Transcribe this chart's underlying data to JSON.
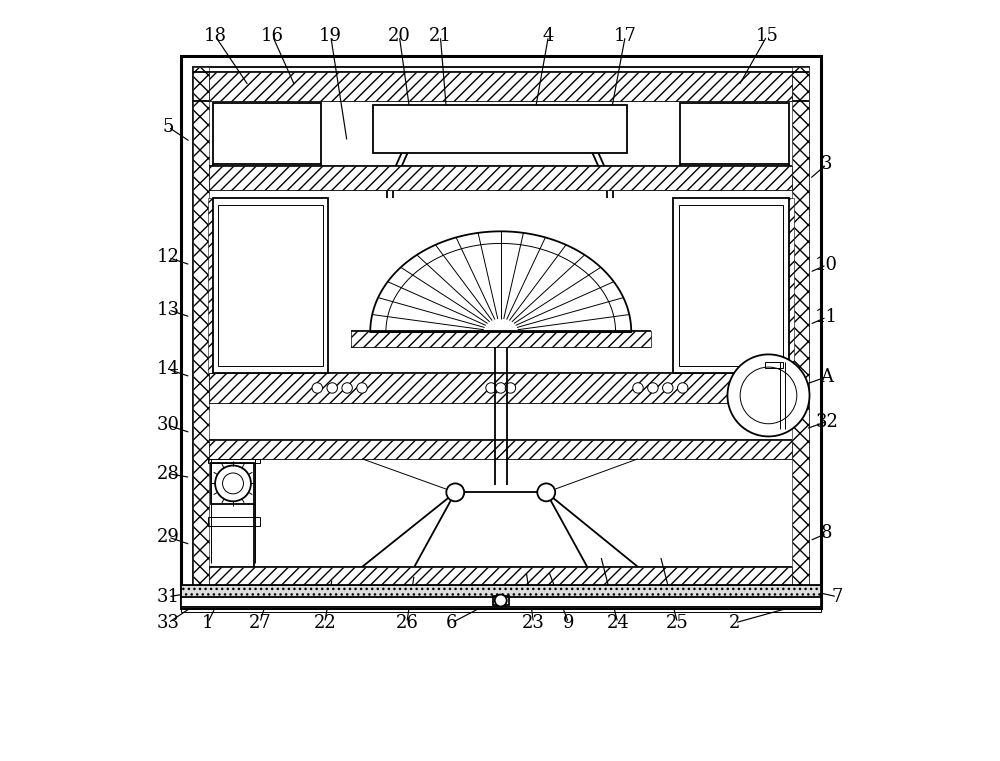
{
  "bg_color": "#ffffff",
  "line_color": "#000000",
  "label_color": "#000000",
  "figsize": [
    10.0,
    7.61
  ],
  "dpi": 100,
  "label_configs": {
    "18": [
      0.118,
      0.962,
      0.163,
      0.895
    ],
    "16": [
      0.195,
      0.962,
      0.225,
      0.895
    ],
    "19": [
      0.273,
      0.962,
      0.295,
      0.82
    ],
    "20": [
      0.365,
      0.962,
      0.38,
      0.855
    ],
    "21": [
      0.42,
      0.962,
      0.43,
      0.84
    ],
    "4": [
      0.565,
      0.962,
      0.545,
      0.85
    ],
    "17": [
      0.668,
      0.962,
      0.648,
      0.855
    ],
    "15": [
      0.858,
      0.962,
      0.82,
      0.895
    ],
    "5": [
      0.055,
      0.84,
      0.085,
      0.82
    ],
    "3": [
      0.938,
      0.79,
      0.915,
      0.77
    ],
    "12": [
      0.055,
      0.665,
      0.085,
      0.655
    ],
    "10": [
      0.938,
      0.655,
      0.915,
      0.645
    ],
    "13": [
      0.055,
      0.595,
      0.085,
      0.585
    ],
    "11": [
      0.938,
      0.585,
      0.915,
      0.575
    ],
    "14": [
      0.055,
      0.515,
      0.085,
      0.505
    ],
    "A": [
      0.938,
      0.505,
      0.91,
      0.495
    ],
    "30": [
      0.055,
      0.44,
      0.085,
      0.43
    ],
    "32": [
      0.938,
      0.445,
      0.91,
      0.435
    ],
    "28": [
      0.055,
      0.375,
      0.085,
      0.37
    ],
    "29": [
      0.055,
      0.29,
      0.085,
      0.28
    ],
    "8": [
      0.938,
      0.295,
      0.915,
      0.285
    ],
    "31": [
      0.055,
      0.21,
      0.085,
      0.215
    ],
    "7": [
      0.952,
      0.21,
      0.93,
      0.215
    ],
    "33": [
      0.055,
      0.175,
      0.085,
      0.195
    ],
    "1": [
      0.108,
      0.175,
      0.118,
      0.195
    ],
    "27": [
      0.178,
      0.175,
      0.19,
      0.215
    ],
    "22": [
      0.265,
      0.175,
      0.275,
      0.235
    ],
    "26": [
      0.375,
      0.175,
      0.385,
      0.24
    ],
    "6": [
      0.435,
      0.175,
      0.498,
      0.208
    ],
    "23": [
      0.545,
      0.175,
      0.535,
      0.245
    ],
    "9": [
      0.592,
      0.175,
      0.565,
      0.245
    ],
    "24": [
      0.658,
      0.175,
      0.635,
      0.265
    ],
    "25": [
      0.738,
      0.175,
      0.715,
      0.265
    ],
    "2": [
      0.815,
      0.175,
      0.905,
      0.2
    ]
  }
}
